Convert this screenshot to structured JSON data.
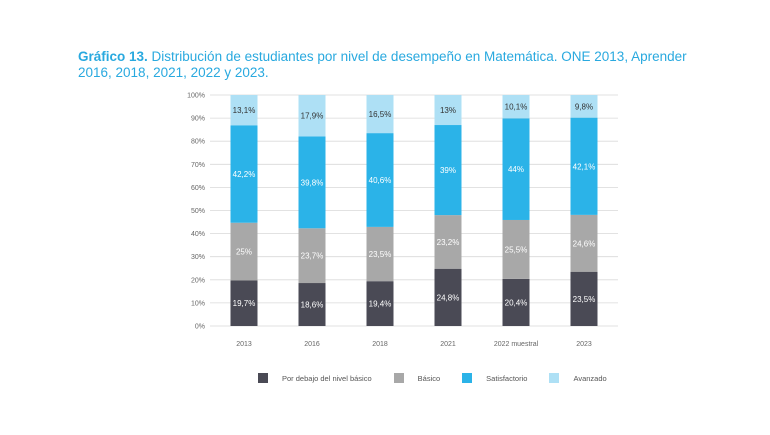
{
  "title": {
    "prefix": "Gráfico 13.",
    "text": "Distribución de estudiantes por nivel de desempeño en Matemática. ONE 2013, Aprender 2016, 2018, 2021, 2022 y 2023."
  },
  "chart_data": {
    "type": "bar",
    "stacked": true,
    "categories": [
      "2013",
      "2016",
      "2018",
      "2021",
      "2022 muestral",
      "2023"
    ],
    "ylim": [
      0,
      100
    ],
    "yticks": [
      "0%",
      "10%",
      "20%",
      "30%",
      "40%",
      "50%",
      "60%",
      "70%",
      "80%",
      "90%",
      "100%"
    ],
    "grid": true,
    "legend_position": "bottom",
    "series": [
      {
        "name": "Por debajo del nivel básico",
        "color": "#4a4a55",
        "values": [
          19.7,
          18.6,
          19.4,
          24.8,
          20.4,
          23.5
        ],
        "labels": [
          "19,7%",
          "18,6%",
          "19,4%",
          "24,8%",
          "20,4%",
          "23,5%"
        ],
        "label_color": "#ffffff"
      },
      {
        "name": "Básico",
        "color": "#a8a8a8",
        "values": [
          25,
          23.7,
          23.5,
          23.2,
          25.5,
          24.6
        ],
        "labels": [
          "25%",
          "23,7%",
          "23,5%",
          "23,2%",
          "25,5%",
          "24,6%"
        ],
        "label_color": "#ffffff"
      },
      {
        "name": "Satisfactorio",
        "color": "#2bb3e8",
        "values": [
          42.2,
          39.8,
          40.6,
          39,
          44,
          42.1
        ],
        "labels": [
          "42,2%",
          "39,8%",
          "40,6%",
          "39%",
          "44%",
          "42,1%"
        ],
        "label_color": "#ffffff"
      },
      {
        "name": "Avanzado",
        "color": "#aee0f5",
        "values": [
          13.1,
          17.9,
          16.5,
          13,
          10.1,
          9.8
        ],
        "labels": [
          "13,1%",
          "17,9%",
          "16,5%",
          "13%",
          "10,1%",
          "9,8%"
        ],
        "label_color": "#333333"
      }
    ]
  }
}
